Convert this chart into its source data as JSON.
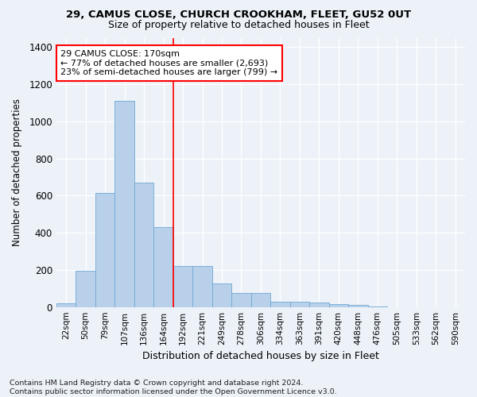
{
  "title": "29, CAMUS CLOSE, CHURCH CROOKHAM, FLEET, GU52 0UT",
  "subtitle": "Size of property relative to detached houses in Fleet",
  "xlabel": "Distribution of detached houses by size in Fleet",
  "ylabel": "Number of detached properties",
  "footer": "Contains HM Land Registry data © Crown copyright and database right 2024.\nContains public sector information licensed under the Open Government Licence v3.0.",
  "categories": [
    "22sqm",
    "50sqm",
    "79sqm",
    "107sqm",
    "136sqm",
    "164sqm",
    "192sqm",
    "221sqm",
    "249sqm",
    "278sqm",
    "306sqm",
    "334sqm",
    "363sqm",
    "391sqm",
    "420sqm",
    "448sqm",
    "476sqm",
    "505sqm",
    "533sqm",
    "562sqm",
    "590sqm"
  ],
  "values": [
    18,
    195,
    615,
    1110,
    670,
    430,
    220,
    220,
    125,
    75,
    75,
    30,
    30,
    25,
    15,
    10,
    5,
    0,
    0,
    0,
    0
  ],
  "bar_color": "#b8d0ea",
  "bar_edge_color": "#6fa8d4",
  "red_line_x": 5.5,
  "annotation_text": "29 CAMUS CLOSE: 170sqm\n← 77% of detached houses are smaller (2,693)\n23% of semi-detached houses are larger (799) →",
  "ylim": [
    0,
    1450
  ],
  "yticks": [
    0,
    200,
    400,
    600,
    800,
    1000,
    1200,
    1400
  ],
  "bg_color": "#edf2f9",
  "grid_color": "#d0dce8"
}
